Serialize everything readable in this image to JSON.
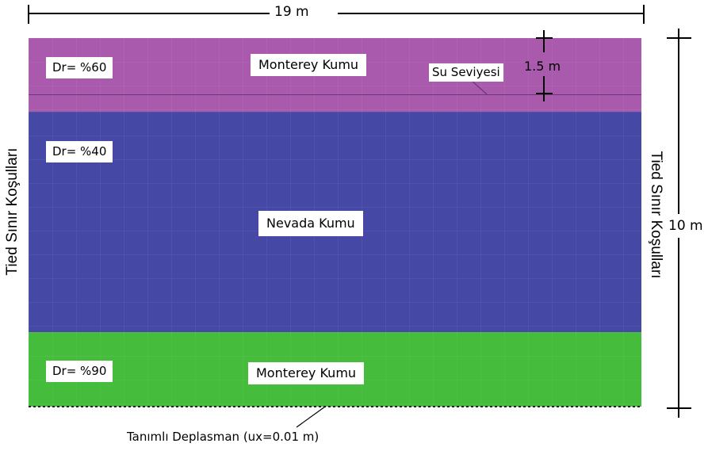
{
  "dimensions": {
    "width_label": "19 m",
    "height_label": "10 m",
    "water_depth_label": "1.5 m"
  },
  "layers": {
    "top": {
      "dr": "Dr= %60",
      "material": "Monterey Kumu",
      "color": "#a95aad"
    },
    "middle": {
      "dr": "Dr= %40",
      "material": "Nevada Kumu",
      "color": "#4549a5"
    },
    "bottom": {
      "dr": "Dr= %90",
      "material": "Monterey Kumu",
      "color": "#45bc3b"
    }
  },
  "annotations": {
    "water_level": "Su Seviyesi",
    "left_boundary": "Tied Sınır Koşulları",
    "right_boundary": "Tied Sınır Koşulları",
    "base_condition": "Tanımlı Deplasman (ux=0.01 m)"
  }
}
